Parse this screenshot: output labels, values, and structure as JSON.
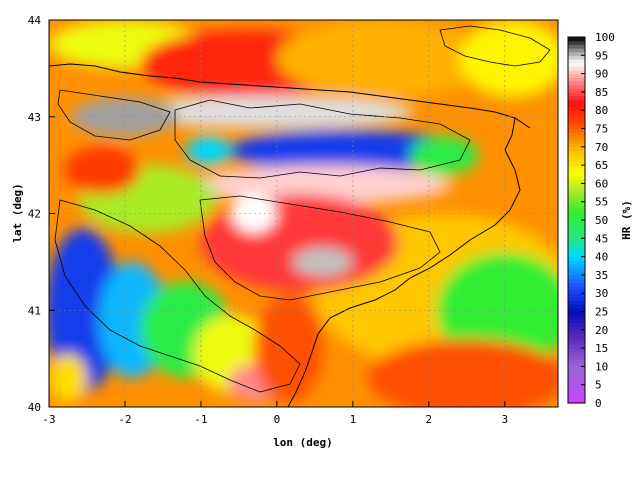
{
  "chart_data": {
    "type": "heatmap",
    "title": "",
    "xlabel": "lon (deg)",
    "ylabel": "lat (deg)",
    "colorbar_label": "HR (%)",
    "xlim": [
      -3,
      3.7
    ],
    "ylim": [
      40,
      44
    ],
    "x_ticks": [
      "-3",
      "-2",
      "-1",
      "0",
      "1",
      "2",
      "3"
    ],
    "y_ticks": [
      "40",
      "41",
      "42",
      "43",
      "44"
    ],
    "colorbar_ticks": [
      "0",
      "5",
      "10",
      "15",
      "20",
      "25",
      "30",
      "35",
      "40",
      "45",
      "50",
      "55",
      "60",
      "65",
      "70",
      "75",
      "80",
      "85",
      "90",
      "95",
      "100"
    ],
    "colorbar_range": [
      0,
      100
    ],
    "grid": "dotted",
    "colormap": [
      {
        "v": 0,
        "color": "#cc44ff"
      },
      {
        "v": 10,
        "color": "#9a66d8"
      },
      {
        "v": 18,
        "color": "#5a2ab8"
      },
      {
        "v": 25,
        "color": "#0010b8"
      },
      {
        "v": 32,
        "color": "#2050ff"
      },
      {
        "v": 40,
        "color": "#00d8ff"
      },
      {
        "v": 45,
        "color": "#20e880"
      },
      {
        "v": 52,
        "color": "#30ee30"
      },
      {
        "v": 58,
        "color": "#a8ea28"
      },
      {
        "v": 63,
        "color": "#ffff00"
      },
      {
        "v": 70,
        "color": "#ffb000"
      },
      {
        "v": 76,
        "color": "#ff5000"
      },
      {
        "v": 82,
        "color": "#ff1010"
      },
      {
        "v": 88,
        "color": "#ff8a8a"
      },
      {
        "v": 93,
        "color": "#ffffff"
      },
      {
        "v": 96,
        "color": "#a0a0a0"
      },
      {
        "v": 100,
        "color": "#000000"
      }
    ],
    "field_background": 72,
    "field_regions": [
      {
        "lon": -2.0,
        "lat": 43.75,
        "rlon": 1.0,
        "rlat": 0.25,
        "hr": 62
      },
      {
        "lon": -0.4,
        "lat": 43.55,
        "rlon": 1.4,
        "rlat": 0.35,
        "hr": 80
      },
      {
        "lon": 1.4,
        "lat": 43.6,
        "rlon": 1.4,
        "rlat": 0.4,
        "hr": 70
      },
      {
        "lon": 3.1,
        "lat": 43.6,
        "rlon": 0.7,
        "rlat": 0.4,
        "hr": 64
      },
      {
        "lon": 2.2,
        "lat": 41.2,
        "rlon": 1.7,
        "rlat": 0.8,
        "hr": 68
      },
      {
        "lon": 3.0,
        "lat": 41.0,
        "rlon": 0.9,
        "rlat": 0.6,
        "hr": 52
      },
      {
        "lon": 2.5,
        "lat": 40.3,
        "rlon": 1.3,
        "rlat": 0.4,
        "hr": 76
      },
      {
        "lon": -0.1,
        "lat": 43.05,
        "rlon": 1.9,
        "rlat": 0.17,
        "hr": 94
      },
      {
        "lon": -2.0,
        "lat": 43.0,
        "rlon": 0.7,
        "rlat": 0.2,
        "hr": 96
      },
      {
        "lon": 0.9,
        "lat": 42.65,
        "rlon": 1.55,
        "rlat": 0.22,
        "hr": 30
      },
      {
        "lon": 2.2,
        "lat": 42.6,
        "rlon": 0.45,
        "rlat": 0.2,
        "hr": 50
      },
      {
        "lon": -0.9,
        "lat": 42.65,
        "rlon": 0.3,
        "rlat": 0.15,
        "hr": 40
      },
      {
        "lon": 0.6,
        "lat": 42.3,
        "rlon": 1.7,
        "rlat": 0.2,
        "hr": 91
      },
      {
        "lon": 0.3,
        "lat": 41.7,
        "rlon": 1.3,
        "rlat": 0.5,
        "hr": 84
      },
      {
        "lon": 0.6,
        "lat": 41.5,
        "rlon": 0.4,
        "rlat": 0.15,
        "hr": 95
      },
      {
        "lon": -0.3,
        "lat": 42.0,
        "rlon": 0.3,
        "rlat": 0.2,
        "hr": 93
      },
      {
        "lon": -1.7,
        "lat": 42.15,
        "rlon": 0.9,
        "rlat": 0.35,
        "hr": 58
      },
      {
        "lon": -2.3,
        "lat": 42.45,
        "rlon": 0.5,
        "rlat": 0.25,
        "hr": 78
      },
      {
        "lon": -2.55,
        "lat": 41.0,
        "rlon": 0.5,
        "rlat": 0.85,
        "hr": 30
      },
      {
        "lon": -1.9,
        "lat": 40.9,
        "rlon": 0.45,
        "rlat": 0.6,
        "hr": 38
      },
      {
        "lon": -1.2,
        "lat": 40.8,
        "rlon": 0.6,
        "rlat": 0.5,
        "hr": 50
      },
      {
        "lon": -0.6,
        "lat": 40.55,
        "rlon": 0.5,
        "rlat": 0.4,
        "hr": 62
      },
      {
        "lon": -0.3,
        "lat": 40.25,
        "rlon": 0.35,
        "rlat": 0.2,
        "hr": 88
      },
      {
        "lon": 0.15,
        "lat": 40.6,
        "rlon": 0.45,
        "rlat": 0.55,
        "hr": 76
      },
      {
        "lon": -2.75,
        "lat": 40.3,
        "rlon": 0.25,
        "rlat": 0.25,
        "hr": 66
      }
    ]
  }
}
